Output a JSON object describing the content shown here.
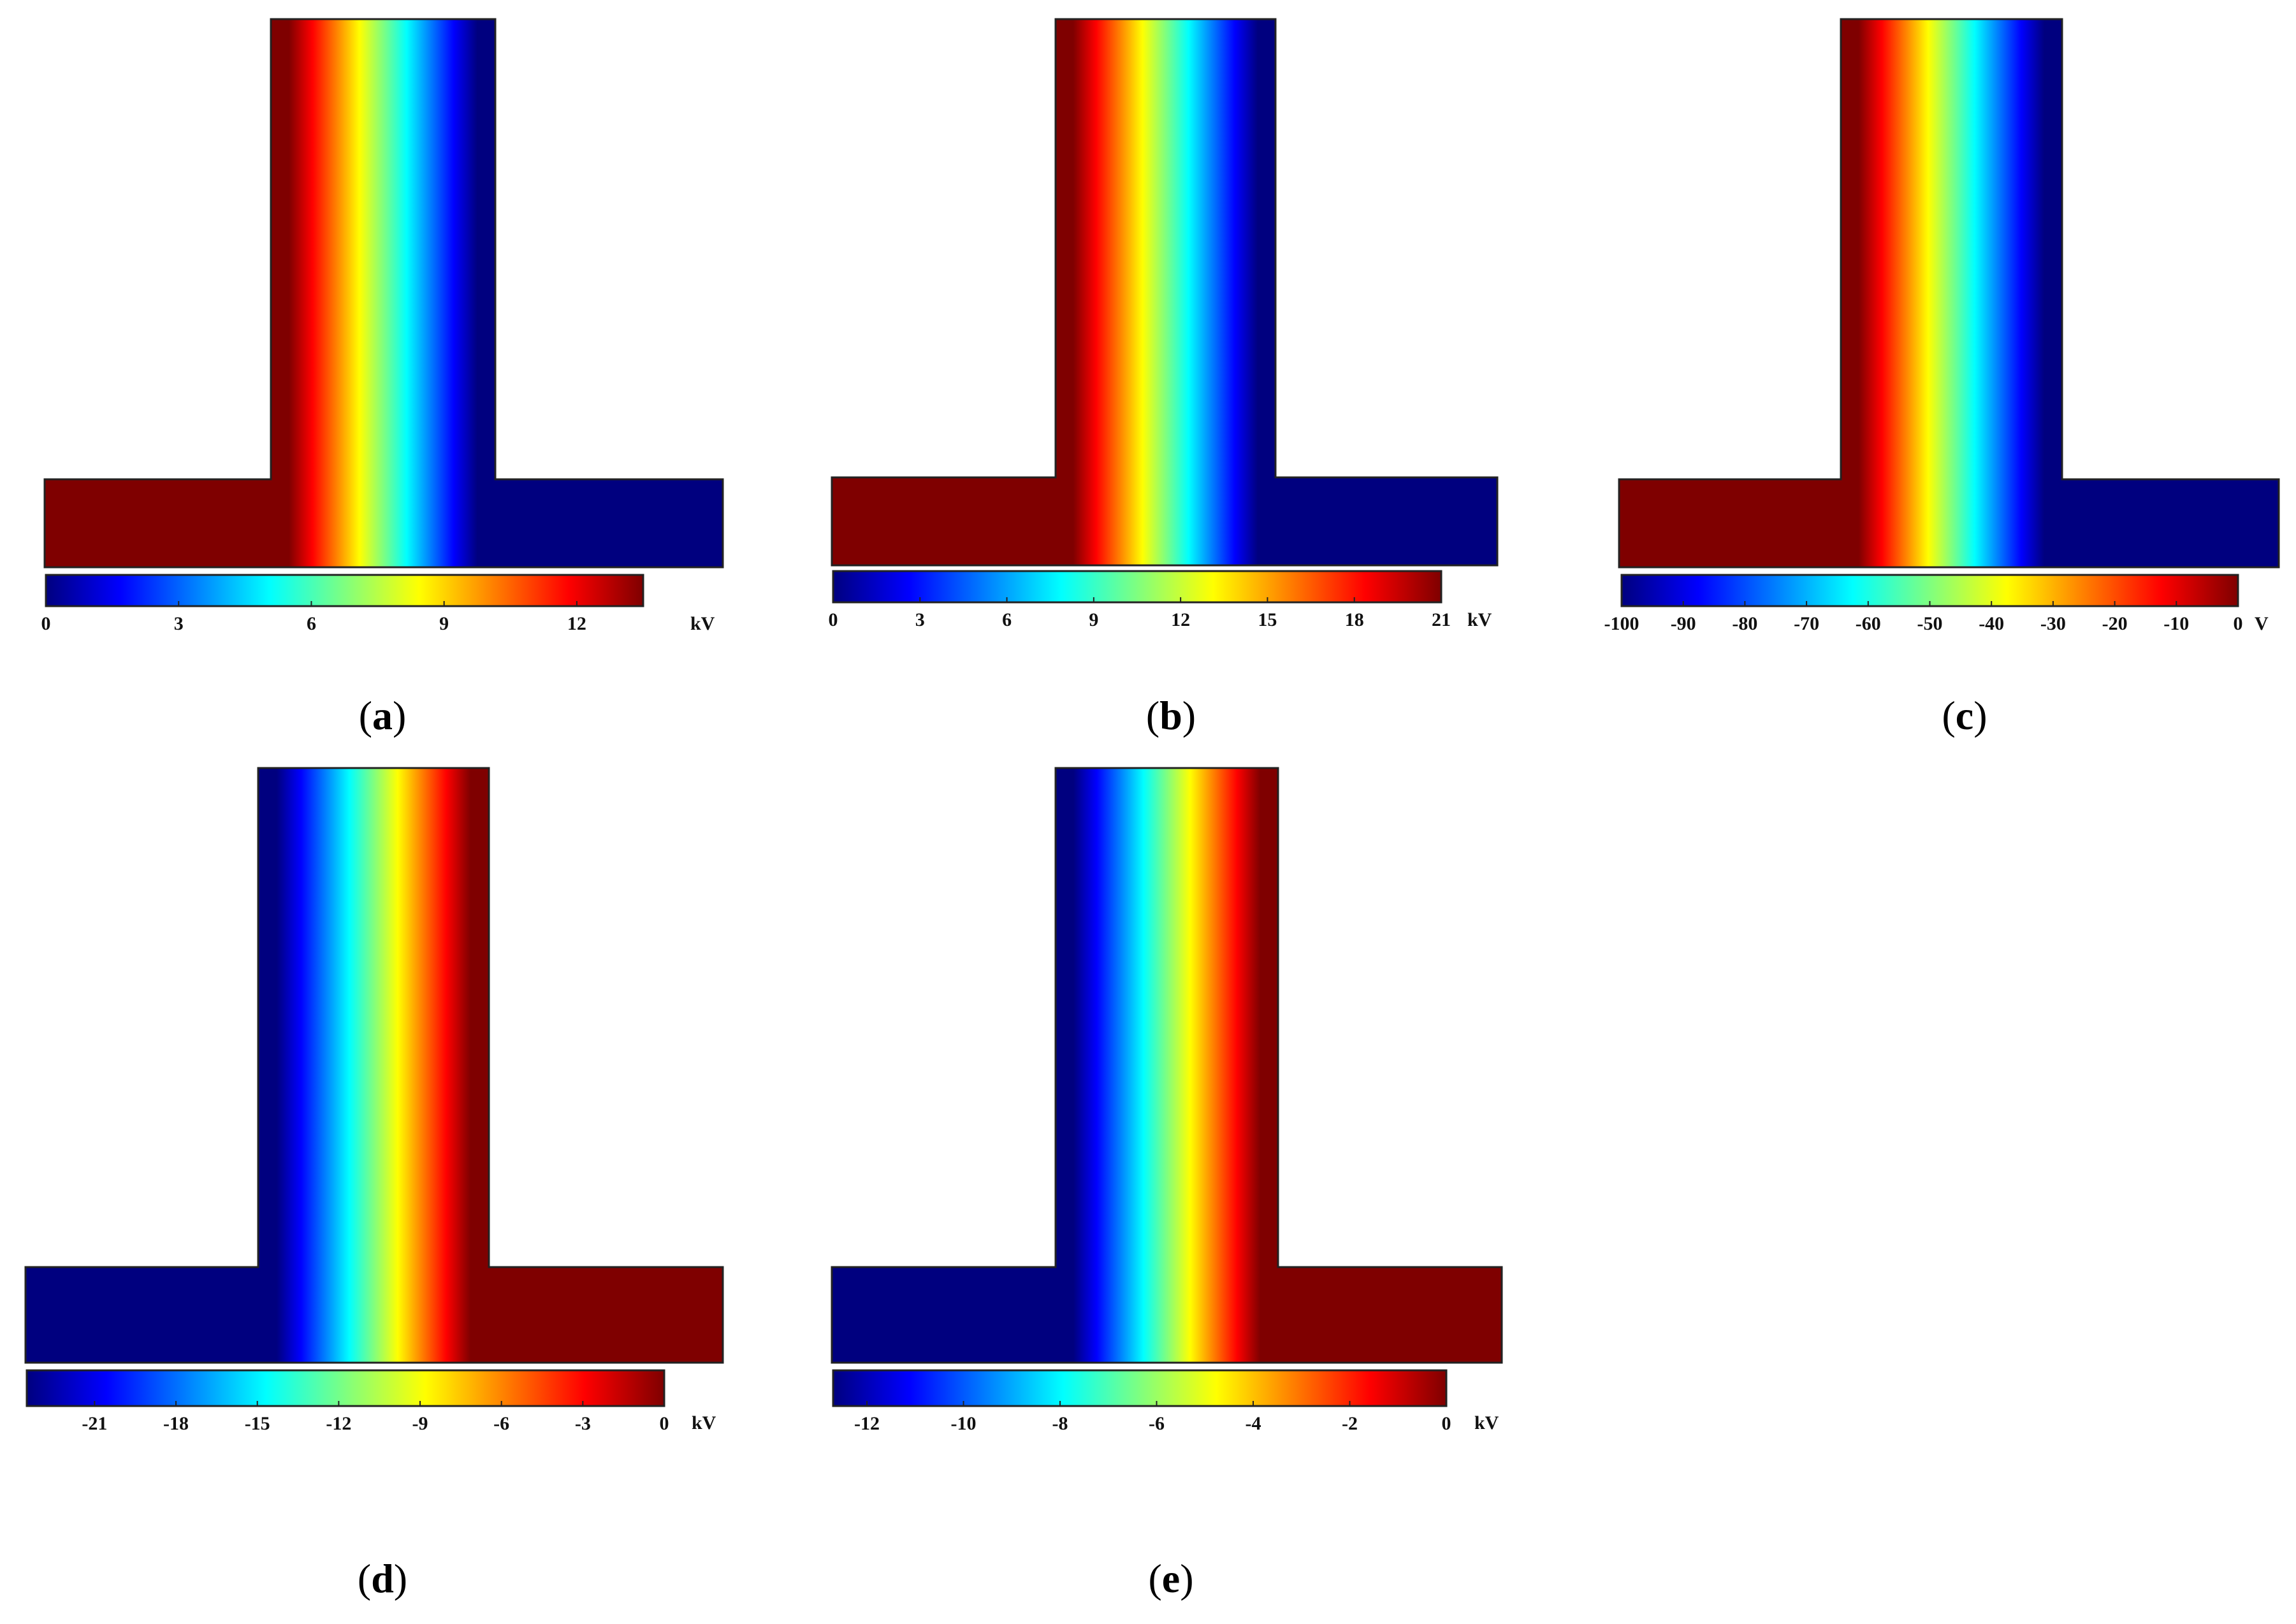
{
  "figure": {
    "panels": [
      {
        "id": "a",
        "caption_letter": "a",
        "colorbar": {
          "min": 0,
          "max": 13.5,
          "ticks": [
            0,
            3,
            6,
            9,
            12
          ],
          "tick_labels": [
            "0",
            "3",
            "6",
            "9",
            "12"
          ],
          "unit": "kV"
        },
        "field_direction": "high-left"
      },
      {
        "id": "b",
        "caption_letter": "b",
        "colorbar": {
          "min": 0,
          "max": 21,
          "ticks": [
            0,
            3,
            6,
            9,
            12,
            15,
            18,
            21
          ],
          "tick_labels": [
            "0",
            "3",
            "6",
            "9",
            "12",
            "15",
            "18",
            "21"
          ],
          "unit": "kV"
        },
        "field_direction": "high-left"
      },
      {
        "id": "c",
        "caption_letter": "c",
        "colorbar": {
          "min": -100,
          "max": 0,
          "ticks": [
            -100,
            -90,
            -80,
            -70,
            -60,
            -50,
            -40,
            -30,
            -20,
            -10,
            0
          ],
          "tick_labels": [
            "-100",
            "-90",
            "-80",
            "-70",
            "-60",
            "-50",
            "-40",
            "-30",
            "-20",
            "-10",
            "0"
          ],
          "unit": "V"
        },
        "field_direction": "high-left"
      },
      {
        "id": "d",
        "caption_letter": "d",
        "colorbar": {
          "min": -23.5,
          "max": 0,
          "ticks": [
            -21,
            -18,
            -15,
            -12,
            -9,
            -6,
            -3,
            0
          ],
          "tick_labels": [
            "-21",
            "-18",
            "-15",
            "-12",
            "-9",
            "-6",
            "-3",
            "0"
          ],
          "unit": "kV"
        },
        "field_direction": "high-right"
      },
      {
        "id": "e",
        "caption_letter": "e",
        "colorbar": {
          "min": -12.7,
          "max": 0,
          "ticks": [
            -12,
            -10,
            -8,
            -6,
            -4,
            -2,
            0
          ],
          "tick_labels": [
            "-12",
            "-10",
            "-8",
            "-6",
            "-4",
            "-2",
            "0"
          ],
          "unit": "kV"
        },
        "field_direction": "high-right"
      }
    ],
    "colormap": {
      "name": "jet",
      "colors": [
        "#00007f",
        "#0000ff",
        "#007fff",
        "#00ffff",
        "#7fff7f",
        "#ffff00",
        "#ff7f00",
        "#ff0000",
        "#7f0000"
      ]
    },
    "outline_color": "#222222"
  }
}
